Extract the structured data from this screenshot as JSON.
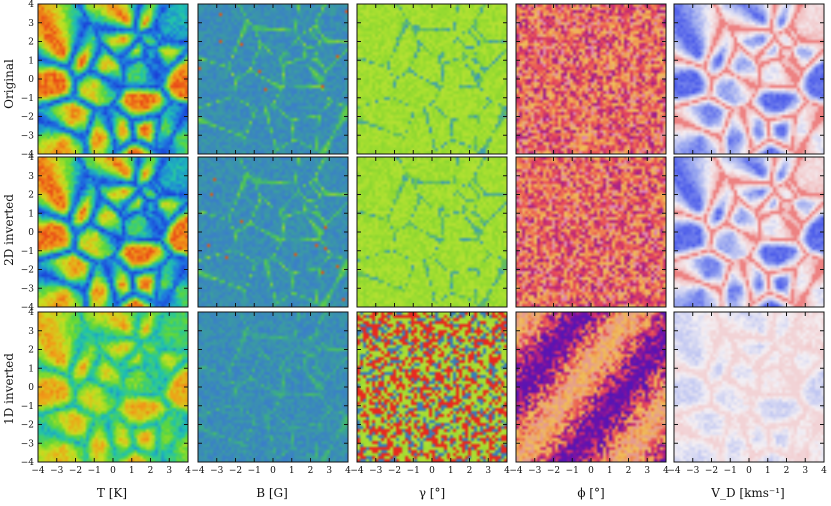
{
  "figure": {
    "row_labels": [
      "Original",
      "2D inverted",
      "1D inverted"
    ],
    "column_labels": [
      "T [K]",
      "B [G]",
      "γ [°]",
      "ϕ [°]",
      "V_D [kms⁻¹]"
    ],
    "x_ticks": [
      "−4",
      "−3",
      "−2",
      "−1",
      "0",
      "1",
      "2",
      "3",
      "4"
    ],
    "y_ticks": [
      "4",
      "3",
      "2",
      "1",
      "0",
      "−1",
      "−2",
      "−3",
      "−4"
    ],
    "axis_range": [
      -4,
      4
    ],
    "colormaps": {
      "T": [
        "#1a3fd8",
        "#1f78e0",
        "#1fc2b0",
        "#5fd838",
        "#c8e020",
        "#f0a018",
        "#e83818"
      ],
      "B": [
        "#3a52d8",
        "#3a7ad0",
        "#3aa890",
        "#50c850",
        "#a0d830",
        "#e8c020",
        "#d82818"
      ],
      "gamma": [
        "#2a48c8",
        "#40a0b0",
        "#78d030",
        "#a8e030",
        "#d8e040",
        "#e85030",
        "#e81818"
      ],
      "phi": [
        "#2a20c8",
        "#7010a8",
        "#c02878",
        "#e84a58",
        "#f08c50",
        "#f0c058",
        "#d860e8"
      ],
      "VD": [
        "#3848e8",
        "#9aa8f0",
        "#f4f0f4",
        "#f0a8a8",
        "#e84848"
      ]
    }
  }
}
